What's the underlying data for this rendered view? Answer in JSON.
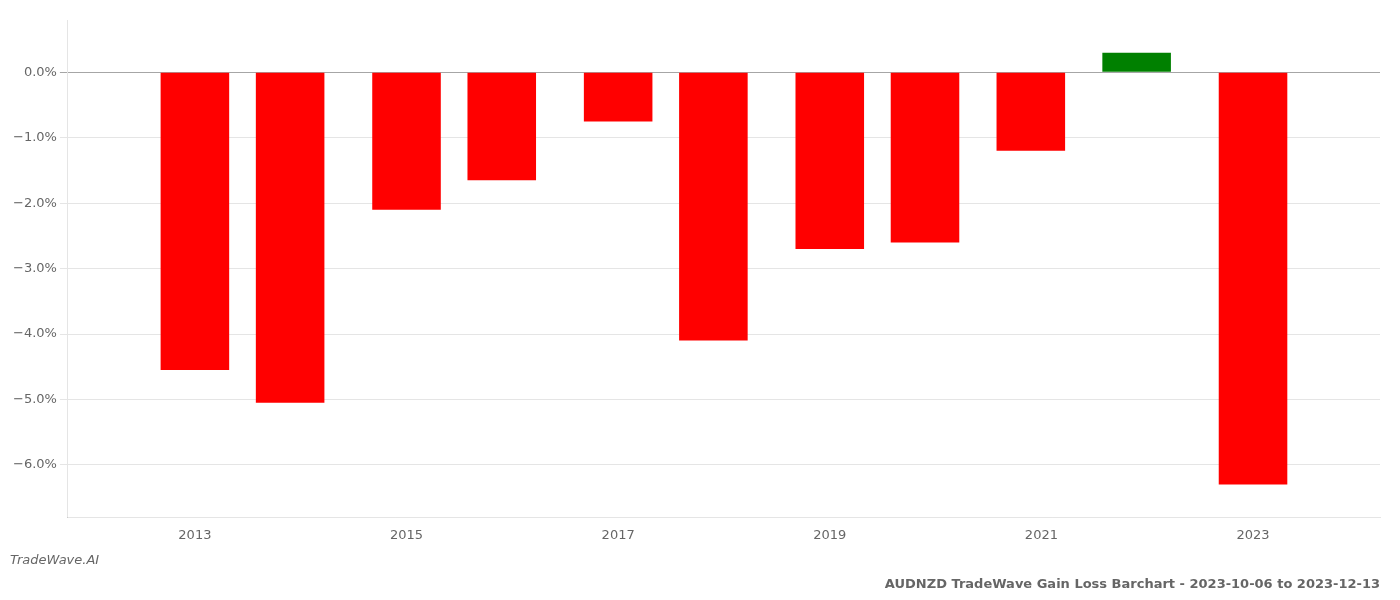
{
  "chart_data": {
    "type": "bar",
    "title": "AUDNZD TradeWave Gain Loss Barchart - 2023-10-06 to 2023-12-13",
    "annotations": [
      "TradeWave.AI"
    ],
    "x": [
      2013,
      2013.9,
      2015,
      2015.9,
      2017,
      2017.9,
      2019,
      2019.9,
      2020.9,
      2021.9,
      2023
    ],
    "values": [
      -0.0455,
      -0.0505,
      -0.021,
      -0.0165,
      -0.0075,
      -0.041,
      -0.027,
      -0.026,
      -0.012,
      0.003,
      -0.063
    ],
    "colors": [
      "red",
      "red",
      "red",
      "red",
      "red",
      "red",
      "red",
      "red",
      "red",
      "green",
      "red"
    ],
    "xlim": [
      2011.8,
      2024.2
    ],
    "xticks": [
      2013,
      2015,
      2017,
      2019,
      2021,
      2023
    ],
    "ylim": [
      -0.068,
      0.008
    ],
    "yticks": [
      {
        "value": 0,
        "label": "0.0%"
      },
      {
        "value": -0.01,
        "label": "−1.0%"
      },
      {
        "value": -0.02,
        "label": "−2.0%"
      },
      {
        "value": -0.03,
        "label": "−3.0%"
      },
      {
        "value": -0.04,
        "label": "−4.0%"
      },
      {
        "value": -0.05,
        "label": "−5.0%"
      },
      {
        "value": -0.06,
        "label": "−6.0%"
      }
    ],
    "grid": "y"
  }
}
